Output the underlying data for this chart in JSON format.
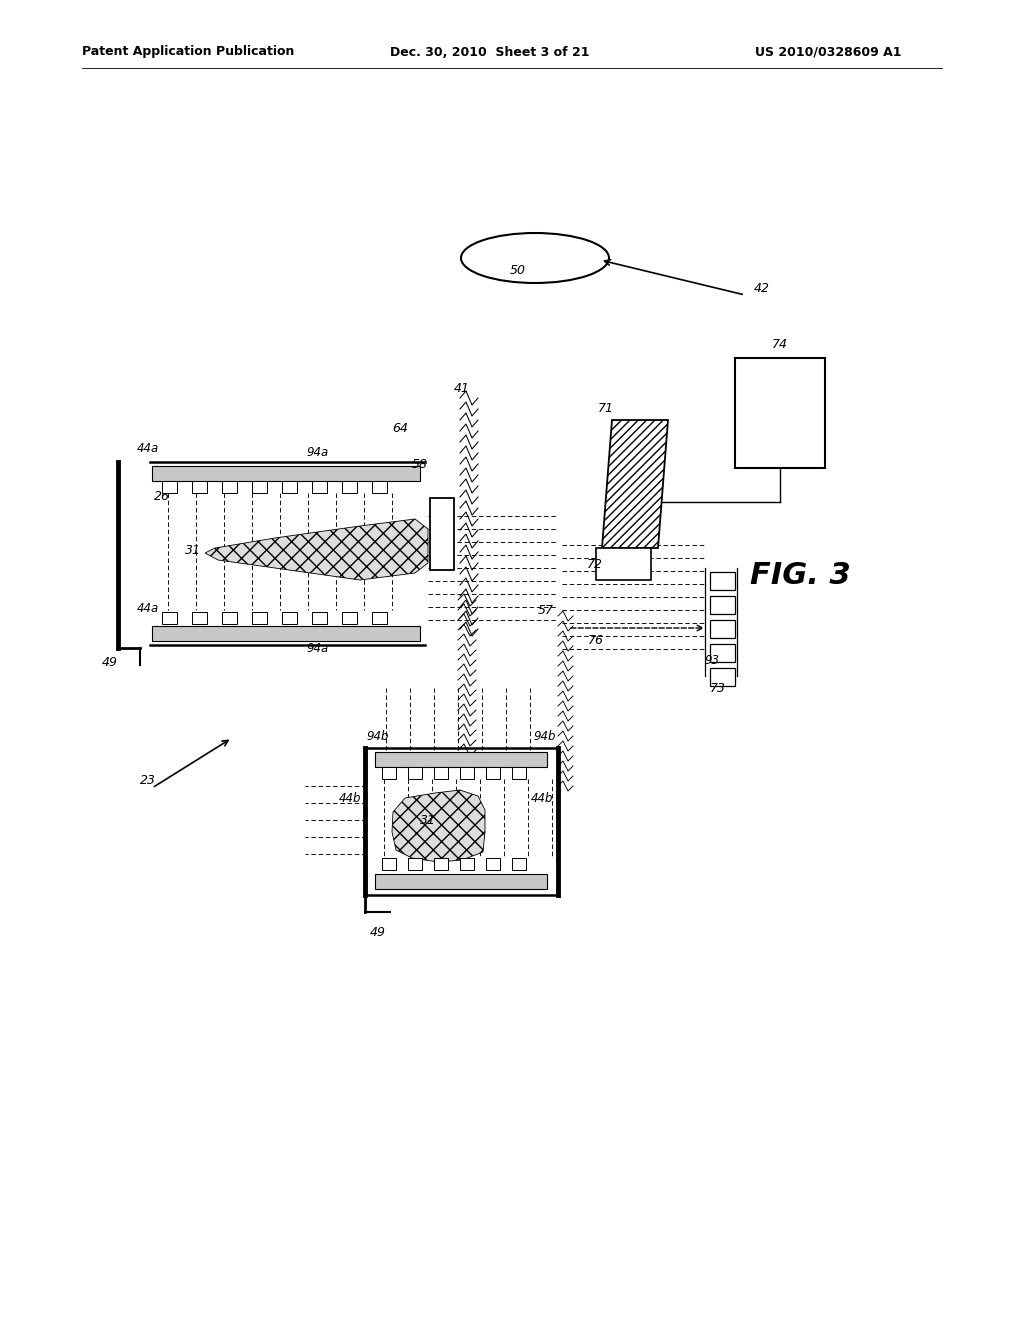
{
  "header_left": "Patent Application Publication",
  "header_center": "Dec. 30, 2010  Sheet 3 of 21",
  "header_right": "US 2010/0328609 A1",
  "fig_label": "FIG. 3",
  "bg": "#ffffff",
  "lc": "#000000"
}
